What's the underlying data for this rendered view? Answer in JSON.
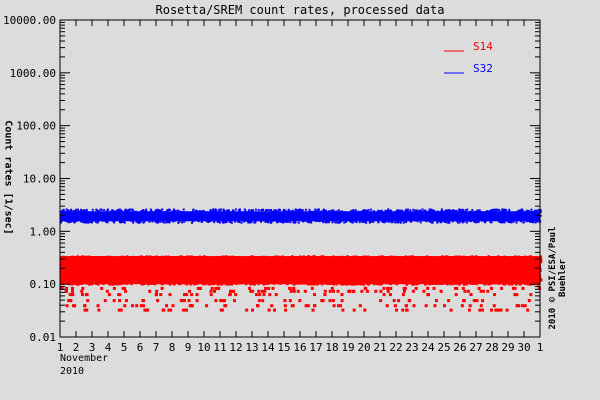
{
  "chart_data": {
    "type": "scatter",
    "title": "Rosetta/SREM count rates, processed data",
    "xlabel": "November 2010",
    "ylabel": "Count rates [1/sec]",
    "yscale": "log",
    "ylim": [
      0.01,
      10000
    ],
    "xlim": [
      1,
      31
    ],
    "y_ticks": [
      "10000.00",
      "1000.00",
      "100.00",
      "10.00",
      "1.00",
      "0.10",
      "0.01"
    ],
    "x_ticks": [
      "1",
      "2",
      "3",
      "4",
      "5",
      "6",
      "7",
      "8",
      "9",
      "10",
      "11",
      "12",
      "13",
      "14",
      "15",
      "16",
      "17",
      "18",
      "19",
      "20",
      "21",
      "22",
      "23",
      "24",
      "25",
      "26",
      "27",
      "28",
      "29",
      "30",
      "1"
    ],
    "month_label": "November",
    "year_label": "2010",
    "credit": "2010 © PSI/ESA/Paul Buehler",
    "legend": {
      "position": "upper right",
      "entries": [
        {
          "name": "S14",
          "color": "#ff0000"
        },
        {
          "name": "S32",
          "color": "#0000ff"
        }
      ]
    },
    "grid": false,
    "series": [
      {
        "name": "S14",
        "color": "#ff0000",
        "typical_range": [
          0.09,
          0.35
        ],
        "outlier_low": 0.03,
        "description": "dense band ~0.1-0.35 with sparse lower points down to ~0.03"
      },
      {
        "name": "S32",
        "color": "#0000ff",
        "typical_range": [
          1.5,
          2.6
        ],
        "mean": 2.0,
        "description": "dense band ~1.5-2.5, nearly constant throughout month"
      }
    ]
  }
}
